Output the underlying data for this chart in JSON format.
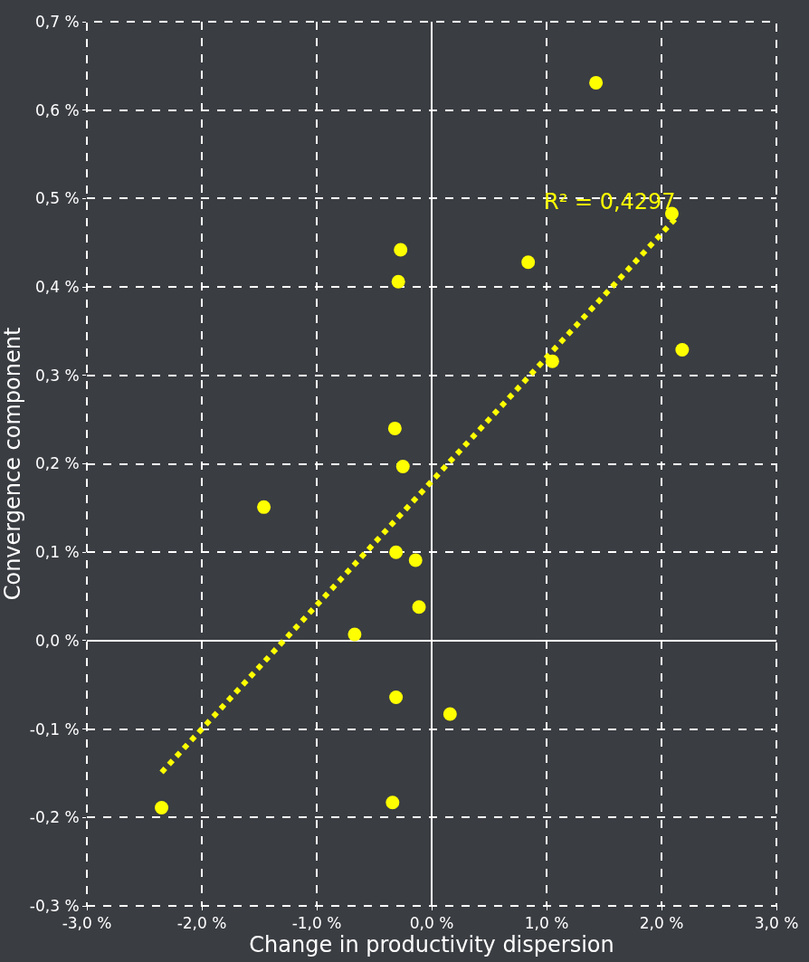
{
  "chart_data": {
    "type": "scatter",
    "xlabel": "Change in productivity dispersion",
    "ylabel": "Convergence component",
    "x": [
      1.43,
      2.09,
      0.84,
      -0.27,
      -0.29,
      2.18,
      1.05,
      -0.32,
      -0.25,
      -1.46,
      -0.31,
      -0.14,
      -0.11,
      -0.67,
      -0.31,
      0.16,
      -0.34,
      -2.35
    ],
    "series": [
      {
        "color": "#ffff00",
        "marker": "circle",
        "values": [
          0.631,
          0.483,
          0.428,
          0.442,
          0.406,
          0.329,
          0.316,
          0.24,
          0.197,
          0.151,
          0.1,
          0.091,
          0.038,
          0.007,
          -0.064,
          -0.083,
          -0.183,
          -0.189
        ]
      },
      {
        "type": "line",
        "color": "#ffff00",
        "line_style": "dotted",
        "marker": "none",
        "x": [
          -2.35,
          2.14
        ],
        "values": [
          -0.149,
          0.48
        ]
      }
    ],
    "annotations": [
      {
        "text": "R² = 0,4297",
        "x": 2.14,
        "y": 0.48
      }
    ],
    "xlim": [
      -3.0,
      3.0
    ],
    "ylim": [
      -0.3,
      0.7
    ],
    "xticks": [
      {
        "value": -3.0,
        "label": "-3,0 %"
      },
      {
        "value": -2.0,
        "label": "-2,0 %"
      },
      {
        "value": -1.0,
        "label": "-1,0 %"
      },
      {
        "value": 0.0,
        "label": "0,0 %"
      },
      {
        "value": 1.0,
        "label": "1,0 %"
      },
      {
        "value": 2.0,
        "label": "2,0 %"
      },
      {
        "value": 3.0,
        "label": "3,0 %"
      }
    ],
    "yticks": [
      {
        "value": -0.3,
        "label": "-0,3 %"
      },
      {
        "value": -0.2,
        "label": "-0,2 %"
      },
      {
        "value": -0.1,
        "label": "-0,1 %"
      },
      {
        "value": 0.0,
        "label": "0,0 %"
      },
      {
        "value": 0.1,
        "label": "0,1 %"
      },
      {
        "value": 0.2,
        "label": "0,2 %"
      },
      {
        "value": 0.3,
        "label": "0,3 %"
      },
      {
        "value": 0.4,
        "label": "0,4 %"
      },
      {
        "value": 0.5,
        "label": "0,5 %"
      },
      {
        "value": 0.6,
        "label": "0,6 %"
      },
      {
        "value": 0.7,
        "label": "0,7 %"
      }
    ],
    "grid": true,
    "legend": false
  }
}
